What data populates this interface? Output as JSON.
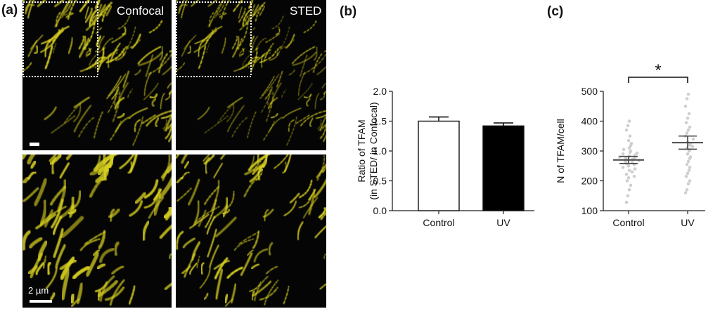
{
  "figure": {
    "panel_labels": [
      "(a)",
      "(b)",
      "(c)"
    ],
    "micrographs": {
      "titles": [
        "Confocal",
        "STED"
      ],
      "scale_bar_label": "2 µm",
      "signal_color": "#d8d020",
      "background_color": "#050505"
    }
  },
  "chart_data": [
    {
      "type": "bar",
      "panel": "(b)",
      "categories": [
        "Control",
        "UV"
      ],
      "values": [
        1.5,
        1.42
      ],
      "errors": [
        0.07,
        0.05
      ],
      "bar_fills": [
        "#ffffff",
        "#000000"
      ],
      "ylabel_line1": "Ratio of TFAM",
      "ylabel_line2": "(in STED/ in Confocal)",
      "ylim": [
        0,
        2.0
      ],
      "yticks": [
        "0.0",
        "0.5",
        "1.0",
        "1.5",
        "2.0"
      ]
    },
    {
      "type": "scatter",
      "panel": "(c)",
      "categories": [
        "Control",
        "UV"
      ],
      "ylabel": "N of TFAM/cell",
      "ylim": [
        100,
        500
      ],
      "yticks": [
        "100",
        "200",
        "300",
        "400",
        "500"
      ],
      "means": [
        270,
        328
      ],
      "sem": [
        12,
        22
      ],
      "significance": "*",
      "points": [
        [
          128,
          150,
          170,
          185,
          200,
          210,
          215,
          222,
          230,
          235,
          240,
          245,
          250,
          255,
          258,
          262,
          265,
          268,
          270,
          272,
          275,
          278,
          280,
          283,
          286,
          290,
          293,
          296,
          300,
          305,
          310,
          318,
          325,
          335,
          350,
          370,
          385,
          400
        ],
        [
          160,
          170,
          190,
          200,
          215,
          225,
          235,
          245,
          255,
          265,
          275,
          280,
          290,
          300,
          305,
          310,
          315,
          320,
          325,
          330,
          340,
          350,
          360,
          370,
          380,
          395,
          410,
          425,
          450,
          475,
          490
        ]
      ]
    }
  ]
}
